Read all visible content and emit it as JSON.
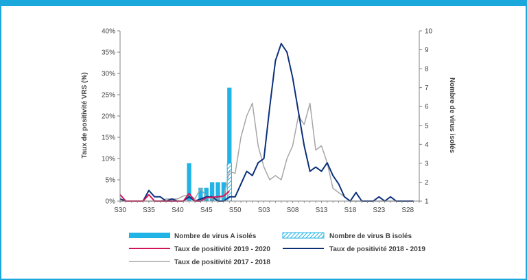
{
  "chart_data": {
    "type": "bar+line",
    "x_ticks": [
      "S30",
      "S35",
      "S40",
      "S45",
      "S50",
      "S03",
      "S08",
      "S13",
      "S18",
      "S23",
      "S28"
    ],
    "weeks": [
      "S30",
      "S31",
      "S32",
      "S33",
      "S34",
      "S35",
      "S36",
      "S37",
      "S38",
      "S39",
      "S40",
      "S41",
      "S42",
      "S43",
      "S44",
      "S45",
      "S46",
      "S47",
      "S48",
      "S49",
      "S50",
      "S51",
      "S52",
      "S01",
      "S02",
      "S03",
      "S04",
      "S05",
      "S06",
      "S07",
      "S08",
      "S09",
      "S10",
      "S11",
      "S12",
      "S13",
      "S14",
      "S15",
      "S16",
      "S17",
      "S18",
      "S19",
      "S20",
      "S21",
      "S22",
      "S23",
      "S24",
      "S25",
      "S26",
      "S27",
      "S28",
      "S29",
      "S30"
    ],
    "ylabel_left": "Taux de positivité VRS (%)",
    "ylabel_right": "Nombre de virus isolés",
    "y_left_ticks": [
      "0%",
      "5%",
      "10%",
      "15%",
      "20%",
      "25%",
      "30%",
      "35%",
      "40%"
    ],
    "y_left_range": [
      0,
      40
    ],
    "y_right_ticks": [
      "1",
      "2",
      "3",
      "4",
      "5",
      "6",
      "7",
      "8",
      "9",
      "10"
    ],
    "y_right_range": [
      1,
      10
    ],
    "bars": [
      {
        "name": "Nombre de virus A isolés",
        "style": "solid",
        "color": "#1fb3e6",
        "points": [
          [
            "S42",
            3
          ],
          [
            "S44",
            1.7
          ],
          [
            "S45",
            1.7
          ],
          [
            "S46",
            2
          ],
          [
            "S47",
            2
          ],
          [
            "S48",
            2
          ],
          [
            "S49",
            7
          ]
        ]
      },
      {
        "name": "Nombre de virus B isolés",
        "style": "hatched",
        "color": "#1fb3e6",
        "points": [
          [
            "S47",
            1
          ],
          [
            "S48",
            1
          ],
          [
            "S49",
            3
          ]
        ]
      }
    ],
    "series": [
      {
        "name": "Taux de positivité 2019 - 2020",
        "color": "#d4145a",
        "width": 2,
        "values": [
          1.5,
          0,
          0,
          0,
          0,
          1.5,
          0,
          0,
          0,
          0,
          0,
          0,
          1.8,
          0,
          0,
          0.8,
          0.9,
          1,
          1.2,
          2.3
        ]
      },
      {
        "name": "Taux de positivité 2018 - 2019",
        "color": "#0b2f7a",
        "width": 2,
        "values": [
          0.5,
          0,
          0,
          0,
          0,
          2.5,
          1,
          1,
          0,
          0.5,
          0,
          0,
          1,
          0,
          0.5,
          1,
          1,
          0,
          0,
          1,
          1,
          4,
          7,
          6,
          9,
          10,
          22,
          33,
          37,
          35,
          29,
          21,
          13,
          7,
          8,
          7,
          9,
          6,
          4,
          1,
          0,
          2,
          0,
          0,
          0,
          1,
          0,
          1,
          0,
          0,
          0,
          0
        ]
      },
      {
        "name": "Taux de positivité 2017 - 2018",
        "color": "#a6a6a6",
        "width": 1.5,
        "values": [
          0,
          0,
          0,
          0,
          0,
          0,
          0,
          0,
          0.5,
          0.5,
          0.5,
          1.2,
          1.5,
          0.5,
          3,
          1,
          0.5,
          0.5,
          1,
          7,
          6.5,
          15,
          20,
          23,
          13,
          8,
          5,
          6,
          5,
          10,
          13,
          20,
          18,
          23,
          12,
          13,
          9,
          3,
          2,
          1,
          0,
          0,
          0,
          0,
          0,
          0,
          0,
          0,
          0,
          0,
          0,
          0
        ]
      }
    ],
    "legend": {
      "bar_a": "Nombre de virus A isolés",
      "bar_b": "Nombre de virus B isolés",
      "line_2019_2020": "Taux de positivité 2019 - 2020",
      "line_2018_2019": "Taux de positivité 2018 - 2019",
      "line_2017_2018": "Taux de positivité 2017 - 2018"
    }
  }
}
